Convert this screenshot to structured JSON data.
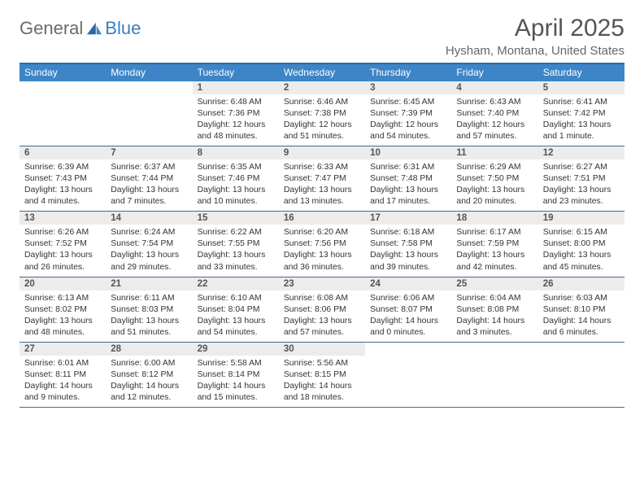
{
  "logo": {
    "text1": "General",
    "text2": "Blue"
  },
  "title": "April 2025",
  "location": "Hysham, Montana, United States",
  "colors": {
    "header_bar": "#3d85c6",
    "rule": "#3d6a9a",
    "daynum_bg": "#ececec"
  },
  "weekdays": [
    "Sunday",
    "Monday",
    "Tuesday",
    "Wednesday",
    "Thursday",
    "Friday",
    "Saturday"
  ],
  "first_weekday_index": 2,
  "days": [
    {
      "n": 1,
      "sunrise": "6:48 AM",
      "sunset": "7:36 PM",
      "daylight": "12 hours and 48 minutes."
    },
    {
      "n": 2,
      "sunrise": "6:46 AM",
      "sunset": "7:38 PM",
      "daylight": "12 hours and 51 minutes."
    },
    {
      "n": 3,
      "sunrise": "6:45 AM",
      "sunset": "7:39 PM",
      "daylight": "12 hours and 54 minutes."
    },
    {
      "n": 4,
      "sunrise": "6:43 AM",
      "sunset": "7:40 PM",
      "daylight": "12 hours and 57 minutes."
    },
    {
      "n": 5,
      "sunrise": "6:41 AM",
      "sunset": "7:42 PM",
      "daylight": "13 hours and 1 minute."
    },
    {
      "n": 6,
      "sunrise": "6:39 AM",
      "sunset": "7:43 PM",
      "daylight": "13 hours and 4 minutes."
    },
    {
      "n": 7,
      "sunrise": "6:37 AM",
      "sunset": "7:44 PM",
      "daylight": "13 hours and 7 minutes."
    },
    {
      "n": 8,
      "sunrise": "6:35 AM",
      "sunset": "7:46 PM",
      "daylight": "13 hours and 10 minutes."
    },
    {
      "n": 9,
      "sunrise": "6:33 AM",
      "sunset": "7:47 PM",
      "daylight": "13 hours and 13 minutes."
    },
    {
      "n": 10,
      "sunrise": "6:31 AM",
      "sunset": "7:48 PM",
      "daylight": "13 hours and 17 minutes."
    },
    {
      "n": 11,
      "sunrise": "6:29 AM",
      "sunset": "7:50 PM",
      "daylight": "13 hours and 20 minutes."
    },
    {
      "n": 12,
      "sunrise": "6:27 AM",
      "sunset": "7:51 PM",
      "daylight": "13 hours and 23 minutes."
    },
    {
      "n": 13,
      "sunrise": "6:26 AM",
      "sunset": "7:52 PM",
      "daylight": "13 hours and 26 minutes."
    },
    {
      "n": 14,
      "sunrise": "6:24 AM",
      "sunset": "7:54 PM",
      "daylight": "13 hours and 29 minutes."
    },
    {
      "n": 15,
      "sunrise": "6:22 AM",
      "sunset": "7:55 PM",
      "daylight": "13 hours and 33 minutes."
    },
    {
      "n": 16,
      "sunrise": "6:20 AM",
      "sunset": "7:56 PM",
      "daylight": "13 hours and 36 minutes."
    },
    {
      "n": 17,
      "sunrise": "6:18 AM",
      "sunset": "7:58 PM",
      "daylight": "13 hours and 39 minutes."
    },
    {
      "n": 18,
      "sunrise": "6:17 AM",
      "sunset": "7:59 PM",
      "daylight": "13 hours and 42 minutes."
    },
    {
      "n": 19,
      "sunrise": "6:15 AM",
      "sunset": "8:00 PM",
      "daylight": "13 hours and 45 minutes."
    },
    {
      "n": 20,
      "sunrise": "6:13 AM",
      "sunset": "8:02 PM",
      "daylight": "13 hours and 48 minutes."
    },
    {
      "n": 21,
      "sunrise": "6:11 AM",
      "sunset": "8:03 PM",
      "daylight": "13 hours and 51 minutes."
    },
    {
      "n": 22,
      "sunrise": "6:10 AM",
      "sunset": "8:04 PM",
      "daylight": "13 hours and 54 minutes."
    },
    {
      "n": 23,
      "sunrise": "6:08 AM",
      "sunset": "8:06 PM",
      "daylight": "13 hours and 57 minutes."
    },
    {
      "n": 24,
      "sunrise": "6:06 AM",
      "sunset": "8:07 PM",
      "daylight": "14 hours and 0 minutes."
    },
    {
      "n": 25,
      "sunrise": "6:04 AM",
      "sunset": "8:08 PM",
      "daylight": "14 hours and 3 minutes."
    },
    {
      "n": 26,
      "sunrise": "6:03 AM",
      "sunset": "8:10 PM",
      "daylight": "14 hours and 6 minutes."
    },
    {
      "n": 27,
      "sunrise": "6:01 AM",
      "sunset": "8:11 PM",
      "daylight": "14 hours and 9 minutes."
    },
    {
      "n": 28,
      "sunrise": "6:00 AM",
      "sunset": "8:12 PM",
      "daylight": "14 hours and 12 minutes."
    },
    {
      "n": 29,
      "sunrise": "5:58 AM",
      "sunset": "8:14 PM",
      "daylight": "14 hours and 15 minutes."
    },
    {
      "n": 30,
      "sunrise": "5:56 AM",
      "sunset": "8:15 PM",
      "daylight": "14 hours and 18 minutes."
    }
  ],
  "labels": {
    "sunrise": "Sunrise:",
    "sunset": "Sunset:",
    "daylight": "Daylight:"
  }
}
